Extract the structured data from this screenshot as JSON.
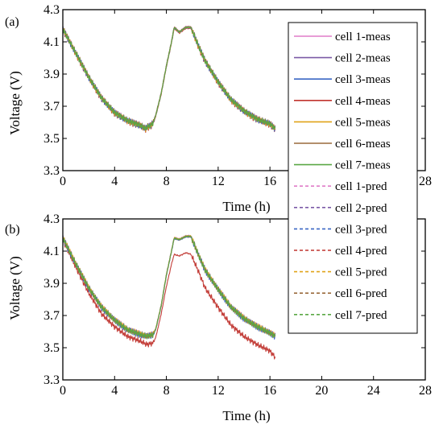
{
  "chart_data": [
    {
      "type": "line",
      "panel_label": "(a)",
      "xlabel": "Time (h)",
      "ylabel": "Voltage (V)",
      "xlim": [
        0,
        28
      ],
      "ylim": [
        3.3,
        4.3
      ],
      "x_ticks": [
        0,
        4,
        8,
        12,
        16,
        20,
        24,
        28
      ],
      "x_tick_labels": [
        "0",
        "4",
        "8",
        "12",
        "16",
        "20",
        "24",
        "28"
      ],
      "y_ticks": [
        3.3,
        3.5,
        3.7,
        3.9,
        4.1,
        4.3
      ],
      "y_tick_labels": [
        "3.3",
        "3.5",
        "3.7",
        "3.9",
        "4.1",
        "4.3"
      ],
      "grid": false,
      "legend_position": "right",
      "series_offsets": [
        0.005,
        0.002,
        -0.002,
        -0.006,
        0.0,
        0.003,
        0.001
      ],
      "profile": [
        [
          0,
          4.18
        ],
        [
          1,
          4.03
        ],
        [
          2,
          3.88
        ],
        [
          3,
          3.75
        ],
        [
          4,
          3.66
        ],
        [
          5,
          3.61
        ],
        [
          6,
          3.58
        ],
        [
          6.4,
          3.56
        ],
        [
          6.5,
          3.57
        ],
        [
          6.8,
          3.58
        ],
        [
          7,
          3.6
        ],
        [
          7.2,
          3.65
        ],
        [
          7.6,
          3.78
        ],
        [
          8.0,
          3.95
        ],
        [
          8.4,
          4.1
        ],
        [
          8.6,
          4.19
        ],
        [
          9.0,
          4.16
        ],
        [
          9.5,
          4.19
        ],
        [
          9.9,
          4.19
        ],
        [
          10.5,
          4.07
        ],
        [
          11,
          3.98
        ],
        [
          12,
          3.85
        ],
        [
          13,
          3.74
        ],
        [
          14,
          3.67
        ],
        [
          15,
          3.62
        ],
        [
          16,
          3.59
        ],
        [
          16.4,
          3.56
        ]
      ]
    },
    {
      "type": "line",
      "panel_label": "(b)",
      "xlabel": "Time (h)",
      "ylabel": "Voltage (V)",
      "xlim": [
        0,
        28
      ],
      "ylim": [
        3.3,
        4.3
      ],
      "x_ticks": [
        0,
        4,
        8,
        12,
        16,
        20,
        24,
        28
      ],
      "x_tick_labels": [
        "0",
        "4",
        "8",
        "12",
        "16",
        "20",
        "24",
        "28"
      ],
      "y_ticks": [
        3.3,
        3.5,
        3.7,
        3.9,
        4.1,
        4.3
      ],
      "y_tick_labels": [
        "3.3",
        "3.5",
        "3.7",
        "3.9",
        "4.1",
        "4.3"
      ],
      "grid": false,
      "profile_main": [
        [
          0,
          4.18
        ],
        [
          1,
          4.02
        ],
        [
          2,
          3.87
        ],
        [
          3,
          3.75
        ],
        [
          4,
          3.67
        ],
        [
          5,
          3.61
        ],
        [
          6,
          3.58
        ],
        [
          6.5,
          3.57
        ],
        [
          7.0,
          3.58
        ],
        [
          7.2,
          3.62
        ],
        [
          7.6,
          3.76
        ],
        [
          8.0,
          3.95
        ],
        [
          8.4,
          4.1
        ],
        [
          8.6,
          4.18
        ],
        [
          9.0,
          4.17
        ],
        [
          9.5,
          4.19
        ],
        [
          9.9,
          4.19
        ],
        [
          10.5,
          4.07
        ],
        [
          11,
          3.98
        ],
        [
          12,
          3.86
        ],
        [
          13,
          3.75
        ],
        [
          14,
          3.68
        ],
        [
          15,
          3.63
        ],
        [
          16,
          3.59
        ],
        [
          16.4,
          3.57
        ]
      ],
      "profile_cell4": [
        [
          0,
          4.17
        ],
        [
          1,
          4.0
        ],
        [
          2,
          3.84
        ],
        [
          3,
          3.71
        ],
        [
          4,
          3.63
        ],
        [
          5,
          3.57
        ],
        [
          6,
          3.54
        ],
        [
          6.5,
          3.52
        ],
        [
          7.0,
          3.53
        ],
        [
          7.2,
          3.57
        ],
        [
          7.6,
          3.71
        ],
        [
          8.0,
          3.88
        ],
        [
          8.4,
          4.02
        ],
        [
          8.6,
          4.08
        ],
        [
          9.0,
          4.07
        ],
        [
          9.5,
          4.09
        ],
        [
          9.9,
          4.08
        ],
        [
          10.5,
          3.97
        ],
        [
          11,
          3.87
        ],
        [
          12,
          3.75
        ],
        [
          13,
          3.64
        ],
        [
          14,
          3.57
        ],
        [
          15,
          3.52
        ],
        [
          16,
          3.48
        ],
        [
          16.4,
          3.44
        ]
      ],
      "series_offsets": [
        0.006,
        0.003,
        -0.002,
        0.0,
        0.004,
        0.0,
        0.002
      ]
    }
  ],
  "legend": {
    "entries": [
      {
        "label": "cell 1-meas",
        "color": "#e07cc8",
        "dashed": false
      },
      {
        "label": "cell 2-meas",
        "color": "#7b5aa6",
        "dashed": false
      },
      {
        "label": "cell 3-meas",
        "color": "#3a66c4",
        "dashed": false
      },
      {
        "label": "cell 4-meas",
        "color": "#c0342e",
        "dashed": false
      },
      {
        "label": "cell 5-meas",
        "color": "#e0a318",
        "dashed": false
      },
      {
        "label": "cell 6-meas",
        "color": "#9a6a3c",
        "dashed": false
      },
      {
        "label": "cell 7-meas",
        "color": "#5aa845",
        "dashed": false
      },
      {
        "label": "cell 1-pred",
        "color": "#e07cc8",
        "dashed": true
      },
      {
        "label": "cell 2-pred",
        "color": "#7b5aa6",
        "dashed": true
      },
      {
        "label": "cell 3-pred",
        "color": "#3a66c4",
        "dashed": true
      },
      {
        "label": "cell 4-pred",
        "color": "#c0342e",
        "dashed": true
      },
      {
        "label": "cell 5-pred",
        "color": "#e0a318",
        "dashed": true
      },
      {
        "label": "cell 6-pred",
        "color": "#9a6a3c",
        "dashed": true
      },
      {
        "label": "cell 7-pred",
        "color": "#5aa845",
        "dashed": true
      }
    ]
  }
}
